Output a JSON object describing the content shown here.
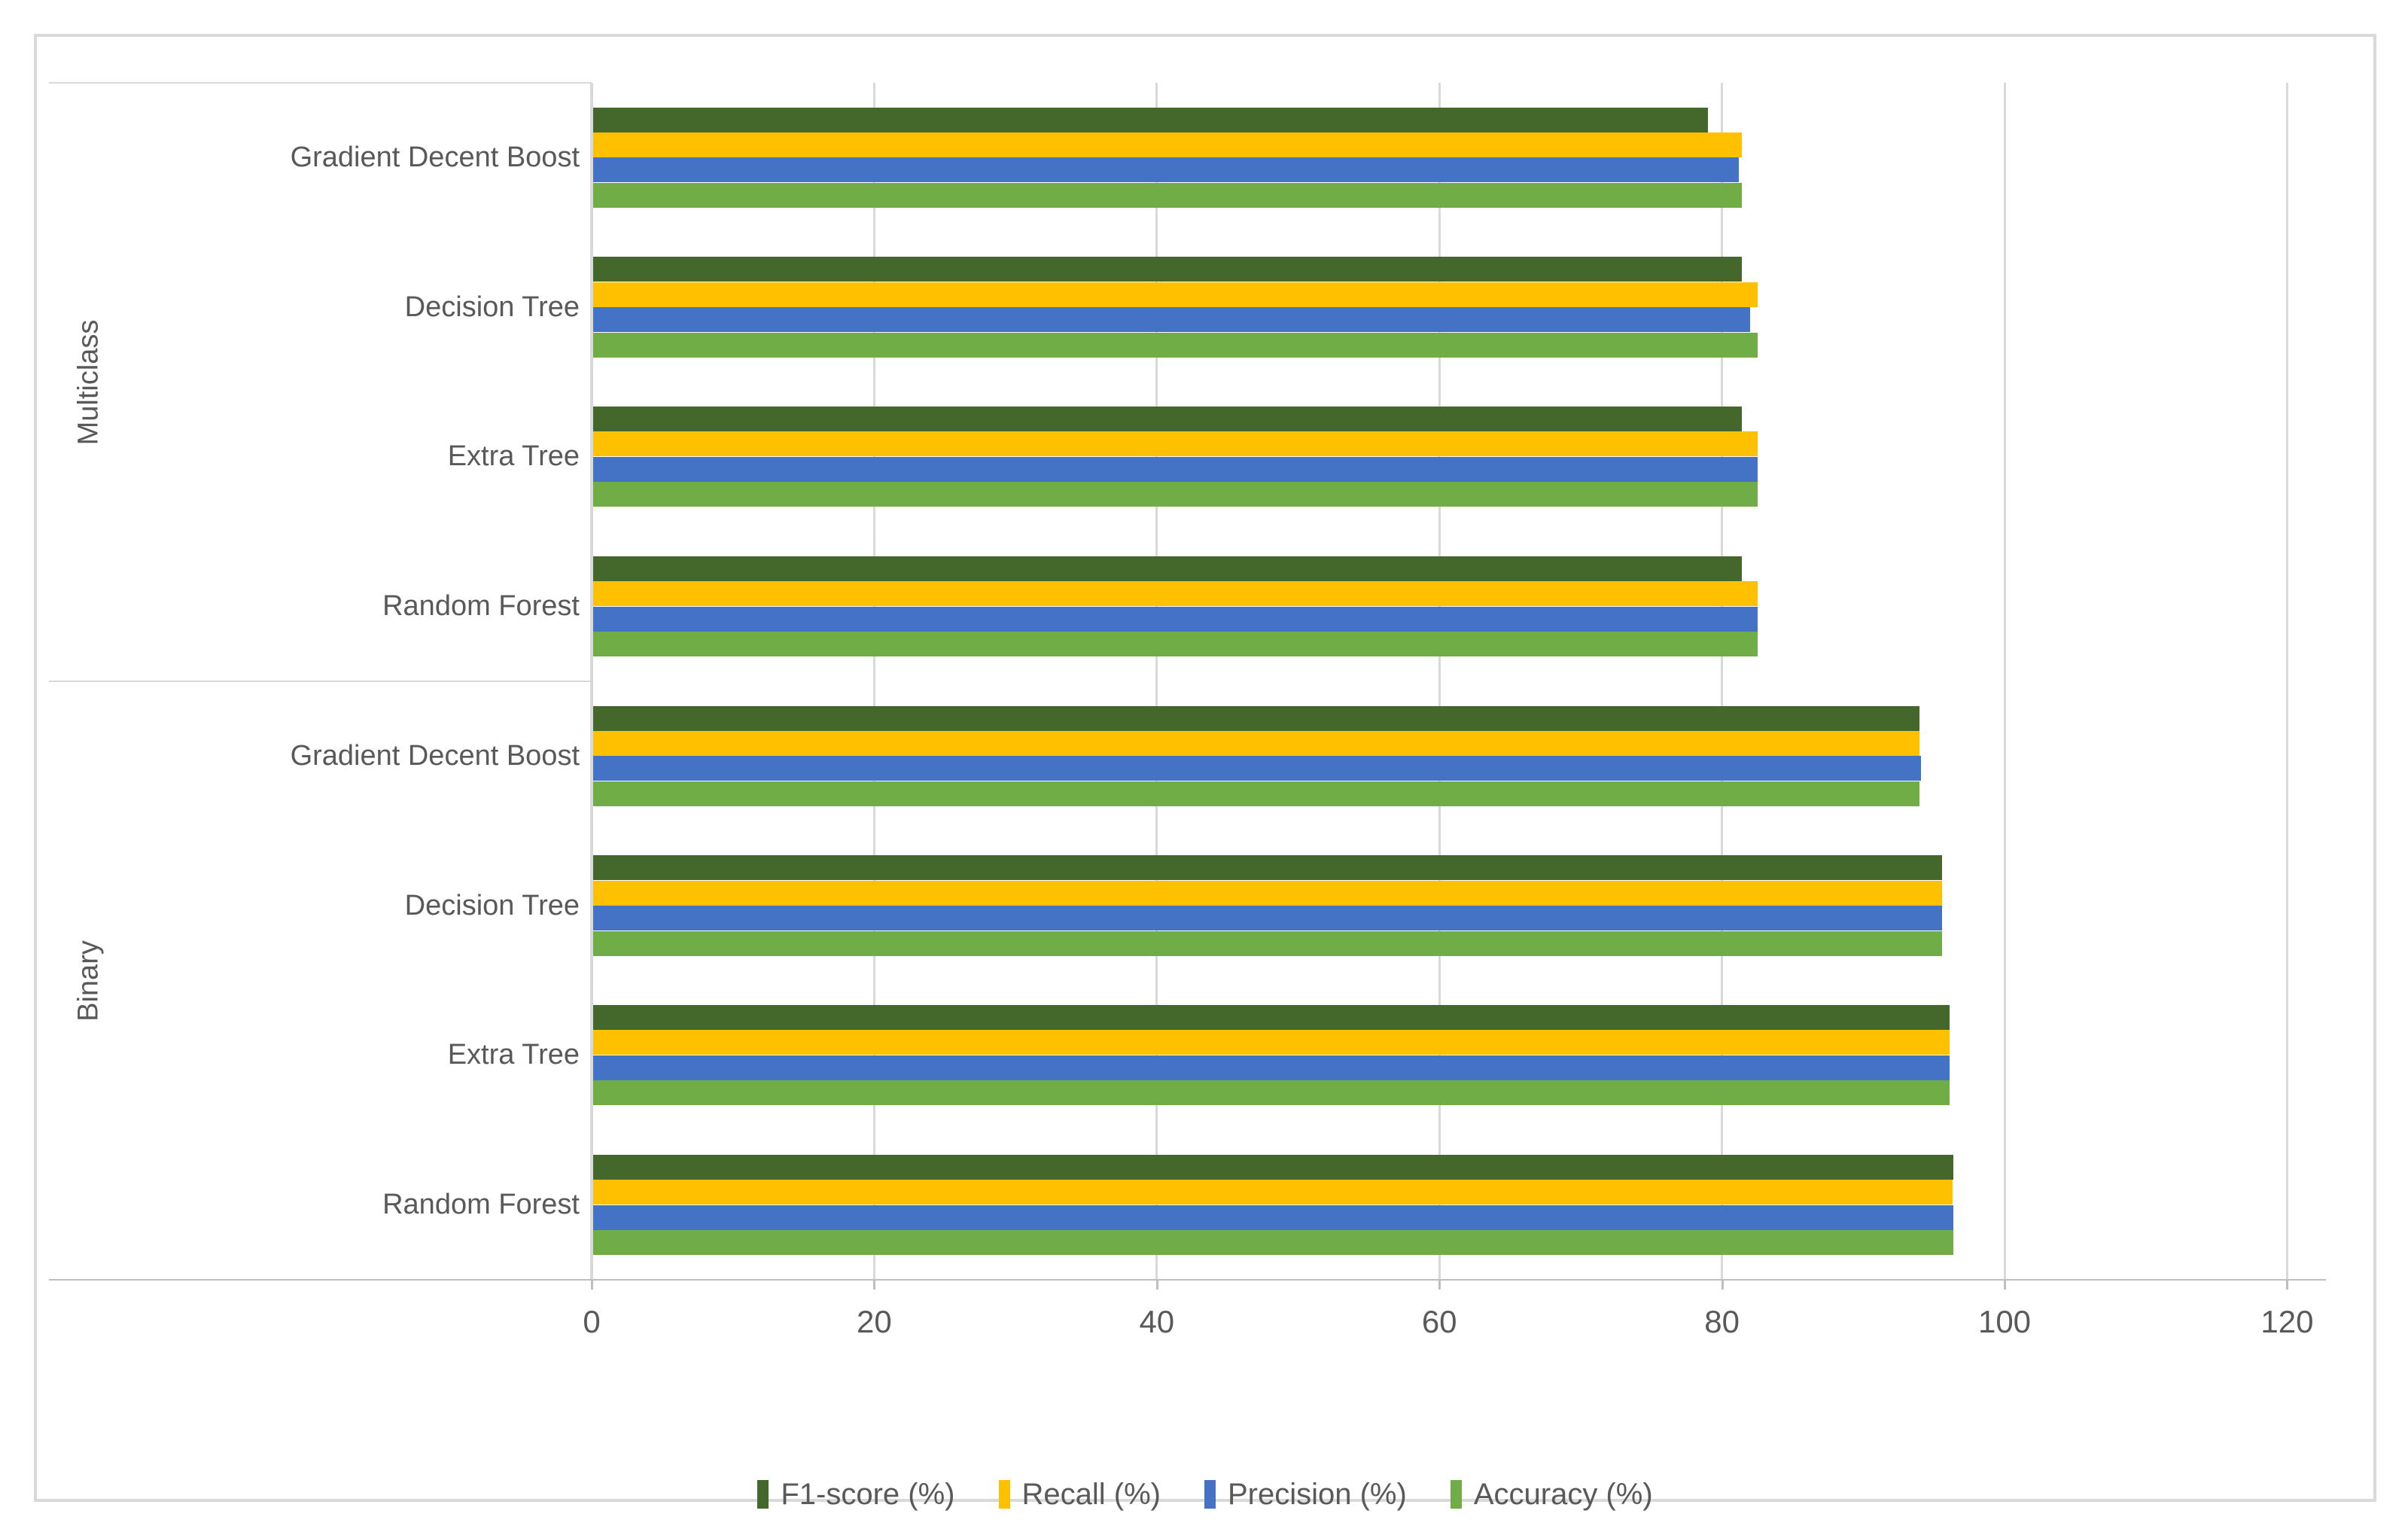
{
  "chart_data": {
    "type": "bar",
    "orientation": "horizontal",
    "title": "",
    "xlabel": "",
    "ylabel": "",
    "xlim": [
      0,
      120
    ],
    "x_ticks": [
      0,
      20,
      40,
      60,
      80,
      100,
      120
    ],
    "grid": true,
    "legend_position": "bottom",
    "outer_groups": [
      {
        "label": "Multiclass",
        "span_categories": [
          0,
          3
        ]
      },
      {
        "label": "Binary",
        "span_categories": [
          4,
          7
        ]
      }
    ],
    "categories": [
      {
        "group": "Multiclass",
        "label": "Gradient Decent Boost"
      },
      {
        "group": "Multiclass",
        "label": "Decision Tree"
      },
      {
        "group": "Multiclass",
        "label": "Extra Tree"
      },
      {
        "group": "Multiclass",
        "label": "Random Forest"
      },
      {
        "group": "Binary",
        "label": "Gradient Decent Boost"
      },
      {
        "group": "Binary",
        "label": "Decision Tree"
      },
      {
        "group": "Binary",
        "label": "Extra Tree"
      },
      {
        "group": "Binary",
        "label": "Random Forest"
      }
    ],
    "bar_order_note": "series bars drawn top-to-bottom within each category group",
    "series": [
      {
        "name": "F1-score (%)",
        "color": "#44682B",
        "values": [
          79.0,
          81.4,
          81.4,
          81.4,
          94.0,
          95.6,
          96.1,
          96.4
        ]
      },
      {
        "name": "Recall (%)",
        "color": "#FFC000",
        "values": [
          81.4,
          82.5,
          82.5,
          82.5,
          94.0,
          95.6,
          96.1,
          96.3
        ]
      },
      {
        "name": "Precision (%)",
        "color": "#4472C4",
        "values": [
          81.2,
          82.0,
          82.5,
          82.5,
          94.1,
          95.6,
          96.1,
          96.4
        ]
      },
      {
        "name": "Accuracy (%)",
        "color": "#70AD47",
        "values": [
          81.4,
          82.5,
          82.5,
          82.5,
          94.0,
          95.6,
          96.1,
          96.4
        ]
      }
    ]
  },
  "legend": {
    "items": [
      {
        "label": "F1-score (%)",
        "color": "#44682B"
      },
      {
        "label": "Recall (%)",
        "color": "#FFC000"
      },
      {
        "label": "Precision (%)",
        "color": "#4472C4"
      },
      {
        "label": "Accuracy (%)",
        "color": "#70AD47"
      }
    ]
  },
  "colors": {
    "gridline": "#D9D9D9",
    "axis_line": "#BFBFBF",
    "label_text": "#595959",
    "frame_border": "#D9D9D9",
    "background": "#FFFFFF"
  }
}
